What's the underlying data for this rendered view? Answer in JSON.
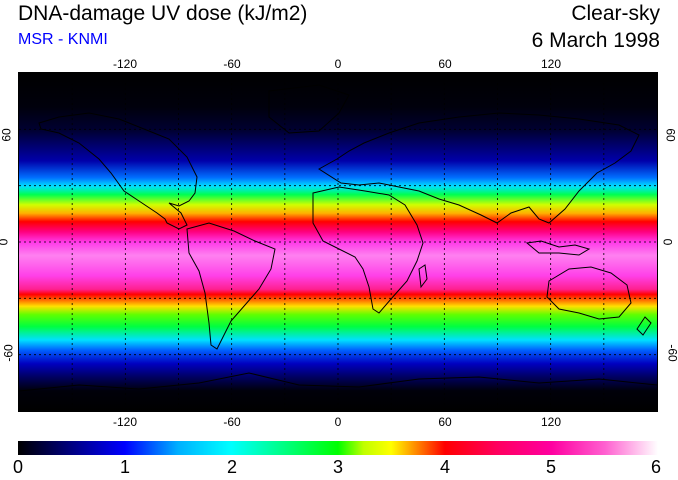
{
  "header": {
    "title": "DNA-damage UV dose (kJ/m2)",
    "subtitle": "MSR - KNMI",
    "condition": "Clear-sky",
    "date": "6 March 1998"
  },
  "map": {
    "longitude_ticks": [
      "-120",
      "-60",
      "0",
      "60",
      "120"
    ],
    "latitude_ticks": [
      "60",
      "0",
      "-60"
    ],
    "grid_longitudes": [
      -150,
      -120,
      -90,
      -60,
      -30,
      0,
      30,
      60,
      90,
      120,
      150
    ],
    "grid_latitudes": [
      60,
      30,
      0,
      -30,
      -60
    ],
    "lon_range": [
      -180,
      180
    ],
    "lat_range": [
      -90,
      90
    ]
  },
  "colorbar": {
    "labels": [
      "0",
      "1",
      "2",
      "3",
      "4",
      "5",
      "6"
    ],
    "range": [
      0,
      6
    ],
    "stops": [
      "#000000",
      "#0000ff",
      "#00ffff",
      "#00ff00",
      "#ffff00",
      "#ff0000",
      "#ff00a0",
      "#ffffff"
    ]
  }
}
